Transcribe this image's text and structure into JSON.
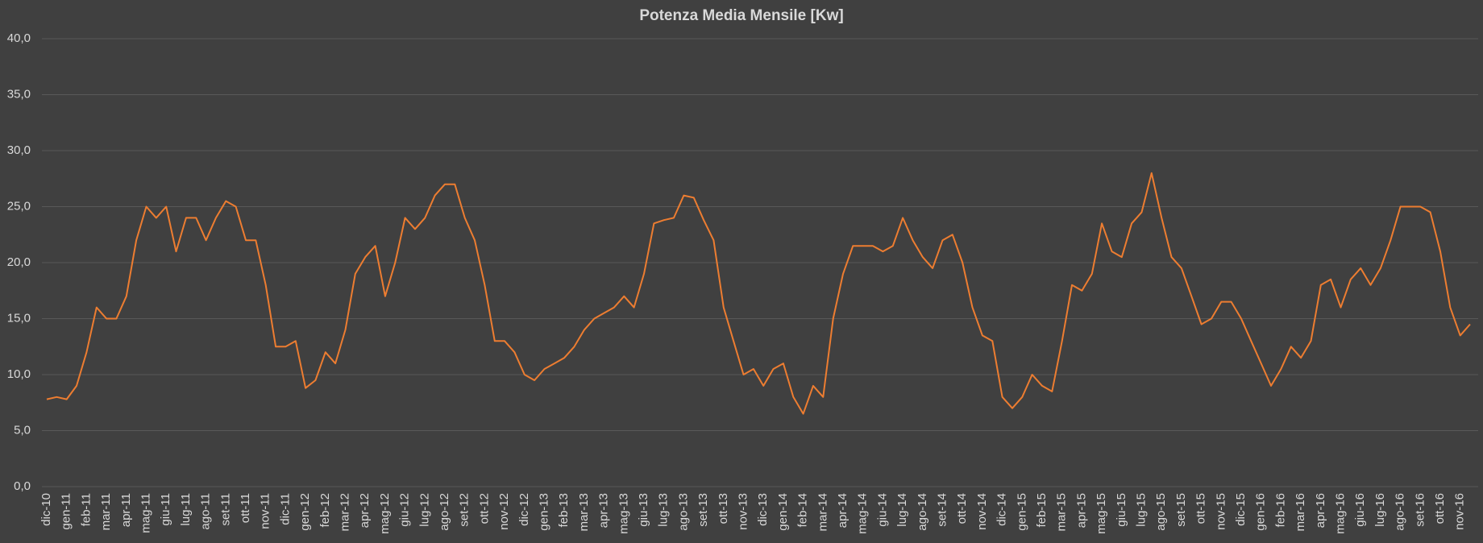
{
  "chart_data": {
    "type": "line",
    "title": "Potenza Media Mensile [Kw]",
    "color": "#ed7d31",
    "grid": true,
    "ylim": [
      0,
      40
    ],
    "yticks": [
      {
        "value": 0,
        "label": "0,0"
      },
      {
        "value": 5,
        "label": "5,0"
      },
      {
        "value": 10,
        "label": "10,0"
      },
      {
        "value": 15,
        "label": "15,0"
      },
      {
        "value": 20,
        "label": "20,0"
      },
      {
        "value": 25,
        "label": "25,0"
      },
      {
        "value": 30,
        "label": "30,0"
      },
      {
        "value": 35,
        "label": "35,0"
      },
      {
        "value": 40,
        "label": "40,0"
      }
    ],
    "categories": [
      "dic-10",
      null,
      "gen-11",
      null,
      "feb-11",
      null,
      "mar-11",
      null,
      "apr-11",
      null,
      "mag-11",
      null,
      "giu-11",
      null,
      "lug-11",
      null,
      "ago-11",
      null,
      "set-11",
      null,
      "ott-11",
      null,
      "nov-11",
      null,
      "dic-11",
      null,
      "gen-12",
      null,
      "feb-12",
      null,
      "mar-12",
      null,
      "apr-12",
      null,
      "mag-12",
      null,
      "giu-12",
      null,
      "lug-12",
      null,
      "ago-12",
      null,
      "set-12",
      null,
      "ott-12",
      null,
      "nov-12",
      null,
      "dic-12",
      null,
      "gen-13",
      null,
      "feb-13",
      null,
      "mar-13",
      null,
      "apr-13",
      null,
      "mag-13",
      null,
      "giu-13",
      null,
      "lug-13",
      null,
      "ago-13",
      null,
      "set-13",
      null,
      "ott-13",
      null,
      "nov-13",
      null,
      "dic-13",
      null,
      "gen-14",
      null,
      "feb-14",
      null,
      "mar-14",
      null,
      "apr-14",
      null,
      "mag-14",
      null,
      "giu-14",
      null,
      "lug-14",
      null,
      "ago-14",
      null,
      "set-14",
      null,
      "ott-14",
      null,
      "nov-14",
      null,
      "dic-14",
      null,
      "gen-15",
      null,
      "feb-15",
      null,
      "mar-15",
      null,
      "apr-15",
      null,
      "mag-15",
      null,
      "giu-15",
      null,
      "lug-15",
      null,
      "ago-15",
      null,
      "set-15",
      null,
      "ott-15",
      null,
      "nov-15",
      null,
      "dic-15",
      null,
      "gen-16",
      null,
      "feb-16",
      null,
      "mar-16",
      null,
      "apr-16",
      null,
      "mag-16",
      null,
      "giu-16",
      null,
      "lug-16",
      null,
      "ago-16",
      null,
      "set-16",
      null,
      "ott-16",
      null,
      "nov-16",
      null
    ],
    "values": [
      7.8,
      8.0,
      7.8,
      9,
      12,
      16,
      15,
      15,
      17,
      22,
      25,
      24,
      25,
      21,
      24,
      24,
      22,
      24,
      25.5,
      25,
      22,
      22,
      18,
      12.5,
      12.5,
      13,
      8.8,
      9.5,
      12,
      11,
      14,
      19,
      20.5,
      21.5,
      17,
      20,
      24,
      23,
      24,
      26,
      27,
      27,
      24,
      22,
      18,
      13,
      13,
      12,
      10,
      9.5,
      10.5,
      11,
      11.5,
      12.5,
      14,
      15,
      15.5,
      16,
      17,
      16,
      19,
      23.5,
      23.8,
      24,
      26,
      25.8,
      23.8,
      22,
      16,
      13,
      10,
      10.5,
      9,
      10.5,
      11,
      8,
      6.5,
      9,
      8,
      15,
      19,
      21.5,
      21.5,
      21.5,
      21,
      21.5,
      24,
      22,
      20.5,
      19.5,
      22,
      22.5,
      20,
      16,
      13.5,
      13,
      8,
      7,
      8,
      10,
      9,
      8.5,
      13,
      18,
      17.5,
      19,
      23.5,
      21,
      20.5,
      23.5,
      24.5,
      28,
      24,
      20.5,
      19.5,
      17,
      14.5,
      15,
      16.5,
      16.5,
      15,
      13,
      11,
      9,
      10.5,
      12.5,
      11.5,
      13,
      18,
      18.5,
      16,
      18.5,
      19.5,
      18,
      19.5,
      22,
      25,
      25,
      25,
      24.5,
      21,
      16,
      13.5,
      14.5
    ]
  }
}
